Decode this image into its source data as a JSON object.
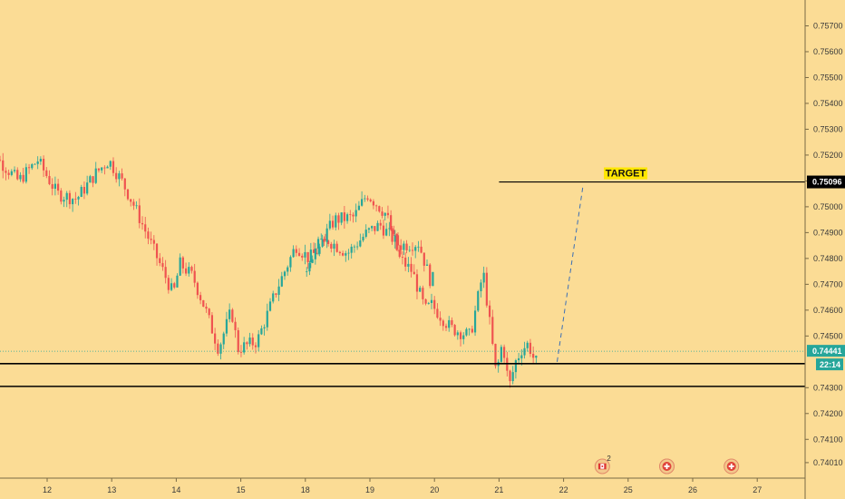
{
  "chart_data": {
    "type": "candlestick",
    "title": "",
    "xlabel": "",
    "ylabel": "",
    "ylim": [
      0.7395,
      0.758
    ],
    "y_ticks": [
      "0.75700",
      "0.75600",
      "0.75500",
      "0.75400",
      "0.75300",
      "0.75200",
      "0.75100",
      "0.75000",
      "0.74900",
      "0.74800",
      "0.74700",
      "0.74600",
      "0.74500",
      "0.74300",
      "0.74200",
      "0.74100",
      "0.74010"
    ],
    "x_ticks": [
      "12",
      "13",
      "14",
      "15",
      "18",
      "19",
      "20",
      "21",
      "22",
      "25",
      "26",
      "27"
    ],
    "x_tick_days": [
      12,
      13,
      14,
      15,
      18,
      19,
      20,
      21,
      22,
      25,
      26,
      27
    ],
    "price_path": [
      [
        11.0,
        0.7535
      ],
      [
        11.3,
        0.7518
      ],
      [
        11.6,
        0.751
      ],
      [
        11.9,
        0.7518
      ],
      [
        12.2,
        0.7505
      ],
      [
        12.5,
        0.7503
      ],
      [
        12.8,
        0.7513
      ],
      [
        13.0,
        0.7518
      ],
      [
        13.2,
        0.751
      ],
      [
        13.4,
        0.75
      ],
      [
        13.7,
        0.7483
      ],
      [
        14.0,
        0.7466
      ],
      [
        14.1,
        0.7478
      ],
      [
        14.3,
        0.7473
      ],
      [
        14.5,
        0.746
      ],
      [
        14.7,
        0.7445
      ],
      [
        14.9,
        0.746
      ],
      [
        15.0,
        0.7445
      ],
      [
        15.3,
        0.7448
      ],
      [
        15.6,
        0.7468
      ],
      [
        15.9,
        0.7485
      ],
      [
        16.1,
        0.748
      ],
      [
        16.4,
        0.7487
      ],
      [
        16.7,
        0.7482
      ],
      [
        17.0,
        0.749
      ],
      [
        17.2,
        0.7493
      ],
      [
        17.5,
        0.7485
      ],
      [
        17.8,
        0.7486
      ],
      [
        18.0,
        0.747
      ],
      [
        18.1,
        0.748
      ],
      [
        18.3,
        0.7487
      ],
      [
        18.5,
        0.7495
      ],
      [
        18.8,
        0.7496
      ],
      [
        19.0,
        0.7505
      ],
      [
        19.3,
        0.7497
      ],
      [
        19.5,
        0.748
      ],
      [
        19.7,
        0.7475
      ],
      [
        19.9,
        0.746
      ],
      [
        20.0,
        0.7462
      ],
      [
        20.3,
        0.7453
      ],
      [
        20.6,
        0.745
      ],
      [
        20.8,
        0.7475
      ],
      [
        20.9,
        0.7455
      ],
      [
        21.0,
        0.7435
      ],
      [
        21.1,
        0.7448
      ],
      [
        21.2,
        0.743
      ],
      [
        21.3,
        0.744
      ],
      [
        21.4,
        0.7445
      ],
      [
        21.5,
        0.7447
      ],
      [
        21.6,
        0.744
      ]
    ],
    "levels": [
      {
        "name": "target",
        "value": 0.75096,
        "label": "TARGET",
        "price_label": "0.75096",
        "start_day": 21.0
      },
      {
        "name": "support-upper",
        "value": 0.74393
      },
      {
        "name": "support-lower",
        "value": 0.74305
      }
    ],
    "current_price": {
      "value": 0.74441,
      "label": "0.74441",
      "countdown": "22:14"
    },
    "projection": {
      "from": [
        21.9,
        0.744
      ],
      "to": [
        22.3,
        0.7508
      ]
    },
    "events": [
      {
        "day": 22.6,
        "count": "2",
        "kind": "flag"
      },
      {
        "day": 23.6,
        "count": "",
        "kind": "flag"
      },
      {
        "day": 24.6,
        "count": "",
        "kind": "cross"
      },
      {
        "day": 25.6,
        "count": "",
        "kind": "cross"
      }
    ],
    "colors": {
      "background": "#fbdc95",
      "up": "#26a69a",
      "down": "#ef5350",
      "level_line": "#000000",
      "current_line": "#26a69a",
      "projection": "#3b6fb6",
      "axis_border": "#7a6a45",
      "target_label_bg": "#ffe600",
      "price_tag_bg": "#000000",
      "current_tag_bg": "#26a69a"
    }
  }
}
